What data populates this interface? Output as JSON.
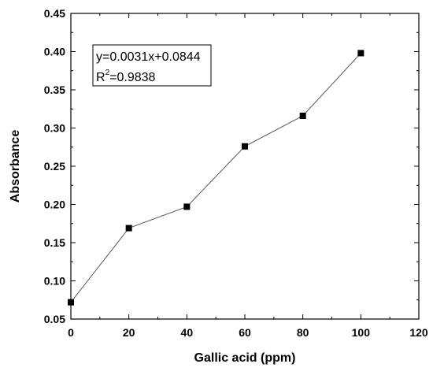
{
  "chart_data": {
    "type": "line",
    "x": [
      0,
      20,
      40,
      60,
      80,
      100
    ],
    "y": [
      0.072,
      0.169,
      0.197,
      0.276,
      0.316,
      0.398
    ],
    "xlabel": "Gallic acid (ppm)",
    "ylabel": "Absorbance",
    "xlim": [
      0,
      120
    ],
    "ylim": [
      0.05,
      0.45
    ],
    "xticks": [
      0,
      20,
      40,
      60,
      80,
      100,
      120
    ],
    "yticks": [
      0.05,
      0.1,
      0.15,
      0.2,
      0.25,
      0.3,
      0.35,
      0.4,
      0.45
    ],
    "xtick_labels": [
      "0",
      "20",
      "40",
      "60",
      "80",
      "100",
      "120"
    ],
    "ytick_labels": [
      "0.05",
      "0.10",
      "0.15",
      "0.20",
      "0.25",
      "0.30",
      "0.35",
      "0.40",
      "0.45"
    ],
    "grid": false,
    "marker": "square",
    "line_color": "#555555",
    "marker_color": "#000000",
    "annotation": {
      "equation": "y=0.0031x+0.0844",
      "r2_prefix": "R",
      "r2_superscript": "2",
      "r2_value": "=0.9838"
    }
  }
}
